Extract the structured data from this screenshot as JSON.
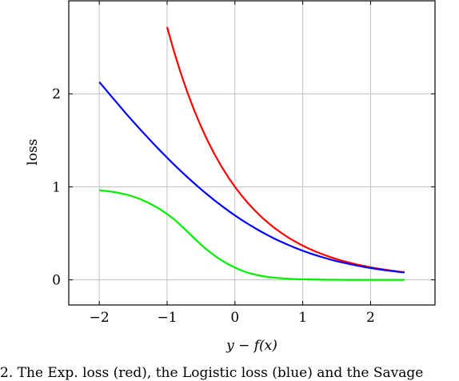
{
  "chart_data": {
    "type": "line",
    "title": "",
    "xlabel": "y − f(x)",
    "ylabel": "loss",
    "xlim": [
      -2.45,
      2.95
    ],
    "ylim": [
      -0.27,
      3.0
    ],
    "xticks": [
      -2,
      -1,
      0,
      1,
      2
    ],
    "xtick_labels": [
      "−2",
      "−1",
      "0",
      "1",
      "2"
    ],
    "yticks": [
      0,
      1,
      2
    ],
    "ytick_labels": [
      "0",
      "1",
      "2"
    ],
    "grid": true,
    "legend": "none",
    "series": [
      {
        "color": "#ff0000",
        "x": [
          -1.0,
          -0.9,
          -0.8,
          -0.7,
          -0.6,
          -0.5,
          -0.4,
          -0.3,
          -0.2,
          -0.1,
          0.0,
          0.1,
          0.2,
          0.3,
          0.4,
          0.5,
          0.6,
          0.7,
          0.8,
          0.9,
          1.0,
          1.1,
          1.2,
          1.3,
          1.4,
          1.5,
          1.6,
          1.7,
          1.8,
          1.9,
          2.0,
          2.1,
          2.2,
          2.3,
          2.4,
          2.5
        ],
        "y": [
          2.718,
          2.46,
          2.226,
          2.014,
          1.822,
          1.649,
          1.492,
          1.35,
          1.221,
          1.105,
          1.0,
          0.905,
          0.819,
          0.741,
          0.67,
          0.607,
          0.549,
          0.497,
          0.449,
          0.407,
          0.368,
          0.333,
          0.301,
          0.273,
          0.247,
          0.223,
          0.202,
          0.183,
          0.165,
          0.15,
          0.135,
          0.122,
          0.111,
          0.1,
          0.091,
          0.082
        ]
      },
      {
        "color": "#0000ff",
        "x": [
          -2.0,
          -1.9,
          -1.8,
          -1.7,
          -1.6,
          -1.5,
          -1.4,
          -1.3,
          -1.2,
          -1.1,
          -1.0,
          -0.9,
          -0.8,
          -0.7,
          -0.6,
          -0.5,
          -0.4,
          -0.3,
          -0.2,
          -0.1,
          0.0,
          0.1,
          0.2,
          0.3,
          0.4,
          0.5,
          0.6,
          0.7,
          0.8,
          0.9,
          1.0,
          1.1,
          1.2,
          1.3,
          1.4,
          1.5,
          1.6,
          1.7,
          1.8,
          1.9,
          2.0,
          2.1,
          2.2,
          2.3,
          2.4,
          2.5
        ],
        "y": [
          2.127,
          2.041,
          1.954,
          1.869,
          1.783,
          1.701,
          1.62,
          1.541,
          1.463,
          1.387,
          1.313,
          1.241,
          1.171,
          1.103,
          1.038,
          0.974,
          0.913,
          0.854,
          0.798,
          0.744,
          0.693,
          0.644,
          0.598,
          0.554,
          0.513,
          0.474,
          0.437,
          0.403,
          0.371,
          0.341,
          0.313,
          0.287,
          0.263,
          0.241,
          0.22,
          0.201,
          0.184,
          0.168,
          0.153,
          0.139,
          0.127,
          0.116,
          0.105,
          0.096,
          0.087,
          0.079
        ]
      },
      {
        "color": "#00ee00",
        "x": [
          -2.0,
          -1.9,
          -1.8,
          -1.7,
          -1.6,
          -1.5,
          -1.4,
          -1.3,
          -1.2,
          -1.1,
          -1.0,
          -0.9,
          -0.8,
          -0.7,
          -0.6,
          -0.5,
          -0.4,
          -0.3,
          -0.2,
          -0.1,
          0.0,
          0.1,
          0.2,
          0.3,
          0.4,
          0.5,
          0.6,
          0.7,
          0.8,
          0.9,
          1.0,
          1.1,
          1.2,
          1.3,
          1.4,
          1.5,
          1.6,
          1.7,
          1.8,
          1.9,
          2.0,
          2.1,
          2.2,
          2.3,
          2.4,
          2.5
        ],
        "y": [
          0.962,
          0.956,
          0.946,
          0.933,
          0.917,
          0.896,
          0.869,
          0.837,
          0.8,
          0.758,
          0.708,
          0.653,
          0.587,
          0.518,
          0.448,
          0.378,
          0.317,
          0.261,
          0.211,
          0.169,
          0.132,
          0.1,
          0.075,
          0.056,
          0.041,
          0.03,
          0.022,
          0.016,
          0.011,
          0.008,
          0.006,
          0.004,
          0.003,
          0.002,
          0.001,
          0.001,
          0.0,
          0.0,
          0.0,
          0.0,
          0.0,
          0.0,
          0.0,
          0.0,
          0.0,
          0.0
        ]
      }
    ]
  },
  "caption": "2. The Exp. loss (red), the Logistic loss (blue) and the Savage"
}
